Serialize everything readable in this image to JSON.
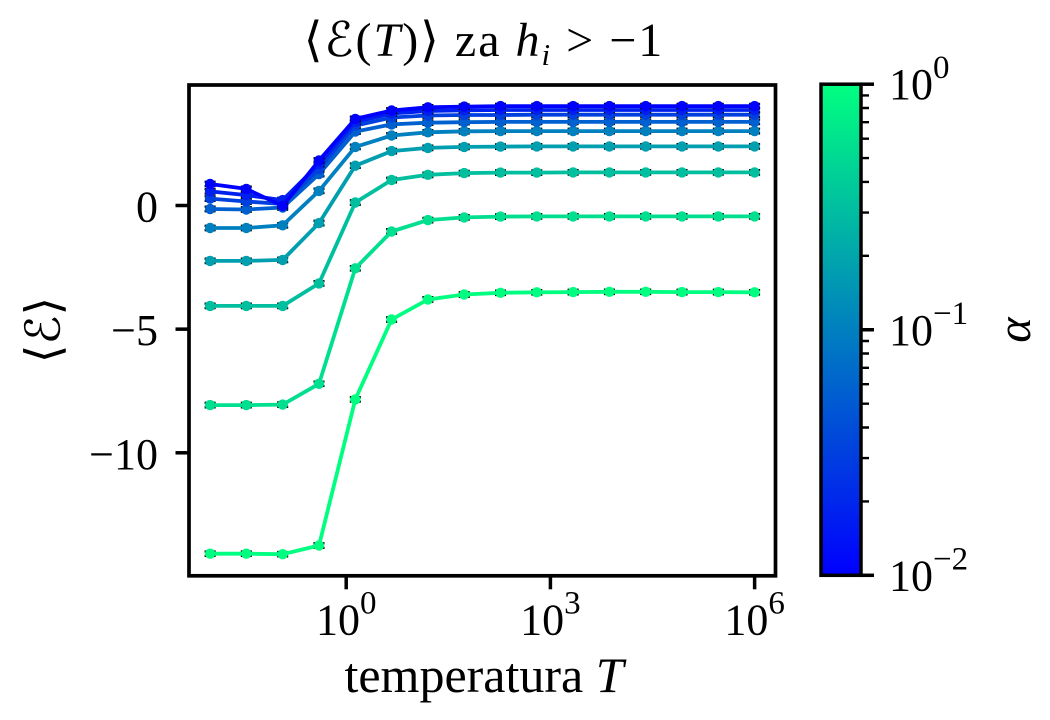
{
  "figure": {
    "background": "#ffffff",
    "title": {
      "pre": "⟨ℰ(",
      "arg": "T",
      "mid": ")⟩ za ",
      "var": "h",
      "sub": "i",
      "post": " > −1",
      "plain": "⟨ℰ(T)⟩ za h_i > −1"
    },
    "xlabel": {
      "text": "temperatura ",
      "var": "T",
      "plain": "temperatura T"
    },
    "ylabel": {
      "plain": "⟨ℰ⟩"
    }
  },
  "chart_data": {
    "type": "line",
    "title": "⟨ℰ(T)⟩ za h_i > −1",
    "xlabel": "temperatura T",
    "ylabel": "⟨ℰ⟩",
    "x_scale": "log",
    "y_scale": "linear",
    "xlim": [
      0.0046,
      2200000
    ],
    "ylim": [
      -14.97,
      4.87
    ],
    "grid": false,
    "legend": "colorbar",
    "marker": "o",
    "error_bars": {
      "yerr": 0.09,
      "color": "#000000"
    },
    "x": [
      0.01,
      0.0341,
      0.1166,
      0.3981,
      1.3594,
      4.6416,
      15.849,
      54.117,
      184.78,
      630.96,
      2154.4,
      7356.4,
      25119,
      85770,
      292864,
      1000000
    ],
    "x_ticks": [
      {
        "value": 1,
        "base": "10",
        "exp": "0"
      },
      {
        "value": 1000,
        "base": "10",
        "exp": "3"
      },
      {
        "value": 1000000,
        "base": "10",
        "exp": "6"
      }
    ],
    "y_ticks": [
      {
        "value": 0,
        "label": "0"
      },
      {
        "value": -5,
        "label": "−5"
      },
      {
        "value": -10,
        "label": "−10"
      }
    ],
    "series": [
      {
        "name": "alpha=0.0100",
        "alpha": 0.01,
        "color": "#0000ff",
        "values": [
          0.87,
          0.67,
          -0.02,
          1.82,
          3.5,
          3.84,
          3.97,
          4.0,
          4.02,
          4.02,
          4.02,
          4.02,
          4.02,
          4.02,
          4.02,
          4.02
        ]
      },
      {
        "name": "alpha=0.0178",
        "alpha": 0.01778,
        "color": "#0020ef",
        "values": [
          0.57,
          0.42,
          0.22,
          1.68,
          3.38,
          3.72,
          3.82,
          3.85,
          3.86,
          3.86,
          3.86,
          3.86,
          3.86,
          3.86,
          3.86,
          3.86
        ]
      },
      {
        "name": "alpha=0.0316",
        "alpha": 0.03162,
        "color": "#0040df",
        "values": [
          0.28,
          0.16,
          0.06,
          1.48,
          3.23,
          3.56,
          3.64,
          3.66,
          3.66,
          3.67,
          3.67,
          3.67,
          3.67,
          3.67,
          3.67,
          3.67
        ]
      },
      {
        "name": "alpha=0.0562",
        "alpha": 0.05623,
        "color": "#0060cf",
        "values": [
          -0.14,
          -0.16,
          -0.08,
          1.27,
          2.99,
          3.28,
          3.35,
          3.37,
          3.38,
          3.38,
          3.38,
          3.38,
          3.38,
          3.38,
          3.38,
          3.38
        ]
      },
      {
        "name": "alpha=0.1000",
        "alpha": 0.1,
        "color": "#0080bf",
        "values": [
          -0.91,
          -0.91,
          -0.8,
          0.59,
          2.37,
          2.83,
          2.96,
          3.0,
          3.01,
          3.01,
          3.01,
          3.01,
          3.01,
          3.01,
          3.01,
          3.01
        ]
      },
      {
        "name": "alpha=0.1778",
        "alpha": 0.17783,
        "color": "#009faf",
        "values": [
          -2.24,
          -2.24,
          -2.2,
          -0.71,
          1.61,
          2.2,
          2.33,
          2.37,
          2.38,
          2.39,
          2.39,
          2.39,
          2.39,
          2.39,
          2.39,
          2.39
        ]
      },
      {
        "name": "alpha=0.3162",
        "alpha": 0.31623,
        "color": "#00bf9f",
        "values": [
          -4.06,
          -4.06,
          -4.06,
          -3.15,
          0.12,
          1.03,
          1.24,
          1.31,
          1.33,
          1.33,
          1.34,
          1.34,
          1.34,
          1.34,
          1.34,
          1.34
        ]
      },
      {
        "name": "alpha=0.5623",
        "alpha": 0.56234,
        "color": "#00df8f",
        "values": [
          -8.07,
          -8.07,
          -8.05,
          -7.21,
          -2.54,
          -1.05,
          -0.59,
          -0.48,
          -0.45,
          -0.44,
          -0.44,
          -0.44,
          -0.44,
          -0.44,
          -0.44,
          -0.44
        ]
      },
      {
        "name": "alpha=1.0000",
        "alpha": 1.0,
        "color": "#00ff80",
        "values": [
          -14.08,
          -14.08,
          -14.1,
          -13.75,
          -7.84,
          -4.61,
          -3.8,
          -3.6,
          -3.53,
          -3.51,
          -3.5,
          -3.49,
          -3.49,
          -3.5,
          -3.5,
          -3.51
        ]
      }
    ],
    "colorbar": {
      "label": "α",
      "cmap": "winter",
      "scale": "log",
      "vmin": 0.01,
      "vmax": 1,
      "color_bottom": "#0000ff",
      "color_top": "#00ff80",
      "ticks": [
        {
          "value": 1,
          "base": "10",
          "exp": "0"
        },
        {
          "value": 0.1,
          "base": "10",
          "exp": "−1"
        },
        {
          "value": 0.01,
          "base": "10",
          "exp": "−2"
        }
      ]
    }
  },
  "style": {
    "axis_color": "#000000",
    "text_color": "#000000",
    "background": "#ffffff",
    "colormap_start": "#0000ff",
    "colormap_end": "#00ff80"
  }
}
